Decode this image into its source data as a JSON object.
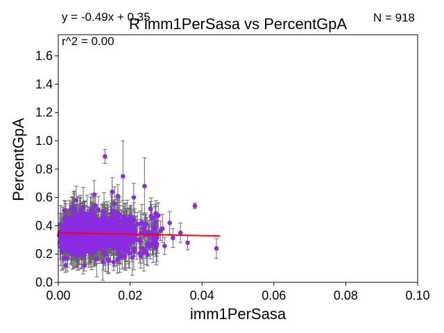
{
  "chart_data": {
    "type": "scatter",
    "title": "R imm1PerSasa vs PercentGpA",
    "xlabel": "imm1PerSasa",
    "ylabel": "PercentGpA",
    "xlim": [
      0,
      0.1
    ],
    "ylim": [
      0,
      1.75
    ],
    "xticks": [
      0,
      0.02,
      0.04,
      0.06,
      0.08,
      0.1
    ],
    "xtick_labels": [
      "0.00",
      "0.02",
      "0.04",
      "0.06",
      "0.08",
      "0.10"
    ],
    "yticks": [
      0,
      0.2,
      0.4,
      0.6,
      0.8,
      1.0,
      1.2,
      1.4,
      1.6
    ],
    "ytick_labels": [
      "0.0",
      "0.2",
      "0.4",
      "0.6",
      "0.8",
      "1.0",
      "1.2",
      "1.4",
      "1.6"
    ],
    "grid": false,
    "annotations": {
      "equation": "y = -0.49x + 0.35",
      "r_squared": "r^2 = 0.00",
      "n": "N = 918"
    },
    "fit_line": {
      "slope": -0.49,
      "intercept": 0.35,
      "x_range": [
        0,
        0.045
      ]
    },
    "series_count_estimate": 918,
    "representative_points": [
      {
        "x": 0.013,
        "y": 0.89,
        "err": 0.05
      },
      {
        "x": 0.018,
        "y": 0.75,
        "err": 0.25
      },
      {
        "x": 0.024,
        "y": 0.68,
        "err": 0.2
      },
      {
        "x": 0.038,
        "y": 0.54,
        "err": 0.02
      },
      {
        "x": 0.044,
        "y": 0.24,
        "err": 0.07
      },
      {
        "x": 0.036,
        "y": 0.28,
        "err": 0.05
      },
      {
        "x": 0.034,
        "y": 0.35,
        "err": 0.07
      },
      {
        "x": 0.031,
        "y": 0.42,
        "err": 0.08
      },
      {
        "x": 0.029,
        "y": 0.38,
        "err": 0.1
      },
      {
        "x": 0.002,
        "y": 0.12,
        "err": 0.05
      },
      {
        "x": 0.005,
        "y": 0.58,
        "err": 0.1
      },
      {
        "x": 0.01,
        "y": 0.62,
        "err": 0.1
      },
      {
        "x": 0.015,
        "y": 0.64,
        "err": 0.1
      },
      {
        "x": 0.021,
        "y": 0.6,
        "err": 0.1
      },
      {
        "x": 0.026,
        "y": 0.45,
        "err": 0.1
      }
    ],
    "colors": {
      "points": "#8a2be2",
      "errorbars": "#666666",
      "fit_line": "#ff0000"
    }
  }
}
